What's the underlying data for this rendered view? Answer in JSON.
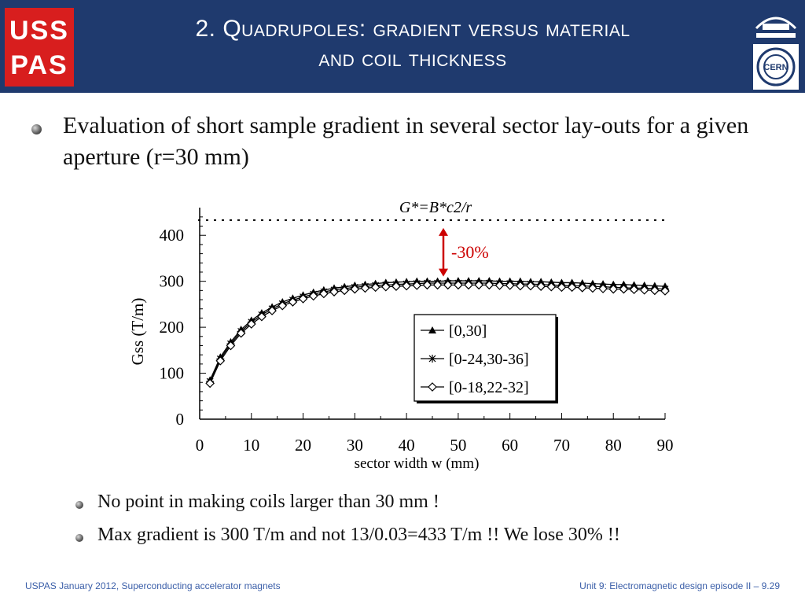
{
  "header": {
    "title_line1": "2. Quadrupoles: gradient versus material",
    "title_line2": "and coil thickness",
    "bg_color": "#1f3a6e",
    "logos": [
      "usspas-logo",
      "berkeley-lab-logo",
      "cern-logo"
    ]
  },
  "body": {
    "main_bullet": "Evaluation of short sample gradient in several sector lay-outs for a given aperture (r=30 mm)",
    "sub_bullets": [
      "No point in making coils larger than 30 mm !",
      "Max gradient is 300 T/m and not 13/0.03=433 T/m !! We lose 30% !!"
    ]
  },
  "chart_data": {
    "type": "line",
    "xlabel": "sector width w (mm)",
    "ylabel": "Gss (T/m)",
    "xlim": [
      0,
      90
    ],
    "ylim": [
      0,
      450
    ],
    "x_ticks": [
      0,
      10,
      20,
      30,
      40,
      50,
      60,
      70,
      80,
      90
    ],
    "y_ticks": [
      0,
      100,
      200,
      300,
      400
    ],
    "reference_line": {
      "label": "G*=B*c2/r",
      "value": 433,
      "style": "dotted"
    },
    "annotation": {
      "text": "-30%",
      "color": "#cc0000"
    },
    "legend_position": "center-right",
    "x": [
      2,
      4,
      6,
      8,
      10,
      12,
      14,
      16,
      18,
      20,
      22,
      24,
      26,
      28,
      30,
      32,
      34,
      36,
      38,
      40,
      42,
      44,
      46,
      48,
      50,
      52,
      54,
      56,
      58,
      60,
      62,
      64,
      66,
      68,
      70,
      72,
      74,
      76,
      78,
      80,
      82,
      84,
      86,
      88,
      90
    ],
    "series": [
      {
        "name": "[0,30]",
        "marker": "triangle",
        "values": [
          85,
          135,
          168,
          195,
          215,
          231,
          244,
          255,
          263,
          270,
          276,
          281,
          285,
          288,
          291,
          293,
          295,
          297,
          298,
          299,
          300,
          300,
          300,
          301,
          301,
          301,
          301,
          301,
          300,
          300,
          300,
          299,
          299,
          298,
          297,
          297,
          296,
          295,
          294,
          293,
          293,
          292,
          291,
          290,
          289
        ]
      },
      {
        "name": "[0-24,30-36]",
        "marker": "star",
        "values": [
          82,
          131,
          164,
          191,
          211,
          227,
          240,
          251,
          259,
          266,
          272,
          277,
          281,
          284,
          287,
          289,
          291,
          292,
          293,
          294,
          295,
          296,
          296,
          296,
          296,
          296,
          296,
          296,
          295,
          295,
          294,
          294,
          293,
          292,
          291,
          290,
          290,
          289,
          288,
          287,
          286,
          285,
          285,
          284,
          283
        ]
      },
      {
        "name": "[0-18,22-32]",
        "marker": "diamond",
        "values": [
          78,
          127,
          160,
          187,
          207,
          223,
          236,
          247,
          255,
          262,
          268,
          273,
          277,
          280,
          283,
          285,
          287,
          288,
          289,
          290,
          291,
          292,
          292,
          292,
          292,
          292,
          292,
          292,
          291,
          291,
          290,
          290,
          289,
          288,
          287,
          287,
          286,
          285,
          284,
          283,
          283,
          282,
          281,
          280,
          279
        ]
      }
    ]
  },
  "footer": {
    "left": "USPAS January 2012,  Superconducting accelerator magnets",
    "right": "Unit 9: Electromagnetic design episode II – 9.29"
  },
  "colors": {
    "accent": "#1f3a6e",
    "footer_text": "#3a5ea8",
    "annotation": "#cc0000"
  }
}
